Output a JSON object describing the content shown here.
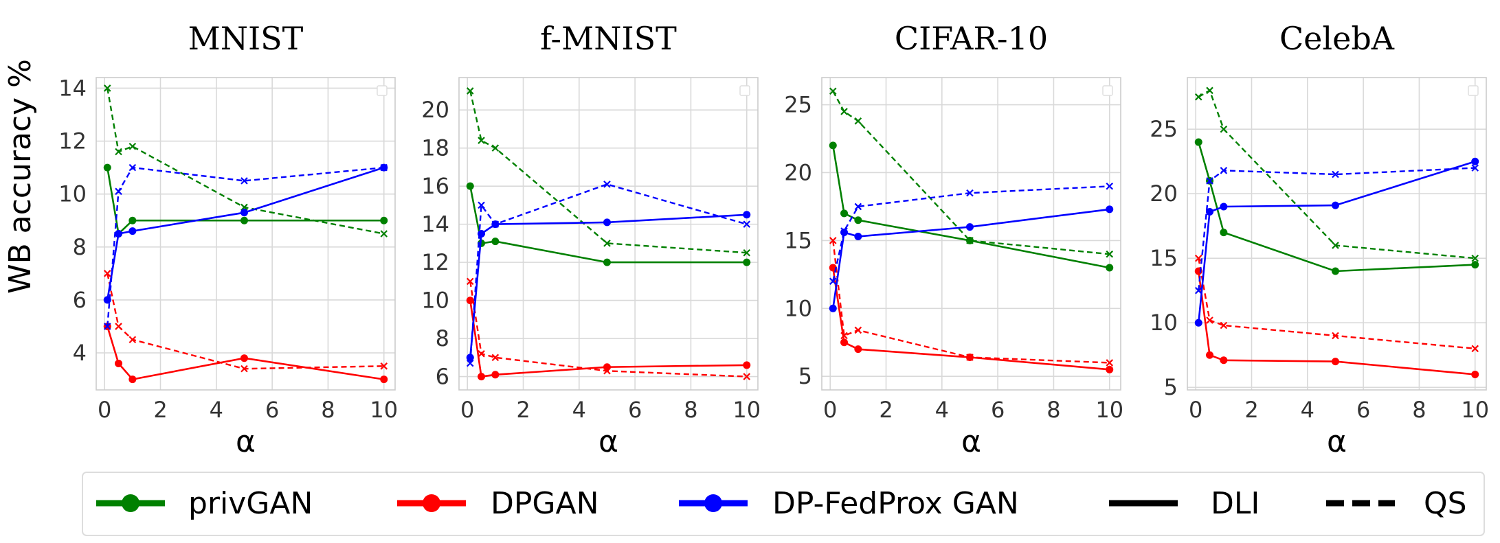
{
  "figure": {
    "ylabel": "WB accuracy %",
    "colors": {
      "privGAN": "#008000",
      "DPGAN": "#ff0000",
      "DP-FedProx GAN": "#0000ff"
    },
    "legend": {
      "items": [
        "privGAN",
        "DPGAN",
        "DP-FedProx GAN",
        "DLI",
        "QS"
      ]
    }
  },
  "chart_data": [
    {
      "type": "line",
      "title": "MNIST",
      "xlabel": "α",
      "ylabel": "WB accuracy %",
      "xlim": [
        -0.3,
        10.4
      ],
      "ylim": [
        2.6,
        14.4
      ],
      "xticks": [
        0,
        2,
        4,
        6,
        8,
        10
      ],
      "yticks": [
        4,
        6,
        8,
        10,
        12,
        14
      ],
      "x": [
        0.1,
        0.5,
        1,
        5,
        10
      ],
      "series": [
        {
          "name": "privGAN",
          "method": "DLI",
          "values": [
            11,
            8.5,
            9,
            9,
            9
          ]
        },
        {
          "name": "privGAN",
          "method": "QS",
          "values": [
            14,
            11.6,
            11.8,
            9.5,
            8.5
          ]
        },
        {
          "name": "DPGAN",
          "method": "DLI",
          "values": [
            5,
            3.6,
            3,
            3.8,
            3
          ]
        },
        {
          "name": "DPGAN",
          "method": "QS",
          "values": [
            7,
            5,
            4.5,
            3.4,
            3.5
          ]
        },
        {
          "name": "DP-FedProx GAN",
          "method": "DLI",
          "values": [
            6,
            8.5,
            8.6,
            9.3,
            11
          ]
        },
        {
          "name": "DP-FedProx GAN",
          "method": "QS",
          "values": [
            5,
            10.1,
            11,
            10.5,
            11
          ]
        }
      ]
    },
    {
      "type": "line",
      "title": "f-MNIST",
      "xlabel": "α",
      "ylabel": "",
      "xlim": [
        -0.3,
        10.4
      ],
      "ylim": [
        5.3,
        21.7
      ],
      "xticks": [
        0,
        2,
        4,
        6,
        8,
        10
      ],
      "yticks": [
        6,
        8,
        10,
        12,
        14,
        16,
        18,
        20
      ],
      "x": [
        0.1,
        0.5,
        1,
        5,
        10
      ],
      "series": [
        {
          "name": "privGAN",
          "method": "DLI",
          "values": [
            16,
            13,
            13.1,
            12,
            12
          ]
        },
        {
          "name": "privGAN",
          "method": "QS",
          "values": [
            21,
            18.4,
            18,
            13,
            12.5
          ]
        },
        {
          "name": "DPGAN",
          "method": "DLI",
          "values": [
            10,
            6,
            6.1,
            6.5,
            6.6
          ]
        },
        {
          "name": "DPGAN",
          "method": "QS",
          "values": [
            11,
            7.2,
            7,
            6.3,
            6
          ]
        },
        {
          "name": "DP-FedProx GAN",
          "method": "DLI",
          "values": [
            7,
            13.5,
            14,
            14.1,
            14.5
          ]
        },
        {
          "name": "DP-FedProx GAN",
          "method": "QS",
          "values": [
            6.7,
            15,
            14,
            16.1,
            14
          ]
        }
      ]
    },
    {
      "type": "line",
      "title": "CIFAR-10",
      "xlabel": "α",
      "ylabel": "",
      "xlim": [
        -0.3,
        10.4
      ],
      "ylim": [
        4,
        27
      ],
      "xticks": [
        0,
        2,
        4,
        6,
        8,
        10
      ],
      "yticks": [
        5,
        10,
        15,
        20,
        25
      ],
      "x": [
        0.1,
        0.5,
        1,
        5,
        10
      ],
      "series": [
        {
          "name": "privGAN",
          "method": "DLI",
          "values": [
            22,
            17,
            16.5,
            15,
            13
          ]
        },
        {
          "name": "privGAN",
          "method": "QS",
          "values": [
            26,
            24.5,
            23.8,
            15,
            14
          ]
        },
        {
          "name": "DPGAN",
          "method": "DLI",
          "values": [
            13,
            7.5,
            7,
            6.4,
            5.5
          ]
        },
        {
          "name": "DPGAN",
          "method": "QS",
          "values": [
            15,
            8,
            8.4,
            6.4,
            6
          ]
        },
        {
          "name": "DP-FedProx GAN",
          "method": "DLI",
          "values": [
            10,
            15.6,
            15.3,
            16,
            17.3
          ]
        },
        {
          "name": "DP-FedProx GAN",
          "method": "QS",
          "values": [
            12,
            15.7,
            17.5,
            18.5,
            19
          ]
        }
      ]
    },
    {
      "type": "line",
      "title": "CelebA",
      "xlabel": "α",
      "ylabel": "",
      "xlim": [
        -0.3,
        10.4
      ],
      "ylim": [
        4.8,
        29
      ],
      "xticks": [
        0,
        2,
        4,
        6,
        8,
        10
      ],
      "yticks": [
        5,
        10,
        15,
        20,
        25
      ],
      "x": [
        0.1,
        0.5,
        1,
        5,
        10
      ],
      "series": [
        {
          "name": "privGAN",
          "method": "DLI",
          "values": [
            24,
            21,
            17,
            14,
            14.5
          ]
        },
        {
          "name": "privGAN",
          "method": "QS",
          "values": [
            27.5,
            28,
            25,
            16,
            15
          ]
        },
        {
          "name": "DPGAN",
          "method": "DLI",
          "values": [
            14,
            7.5,
            7.1,
            7,
            6
          ]
        },
        {
          "name": "DPGAN",
          "method": "QS",
          "values": [
            15,
            10.2,
            9.8,
            9,
            8
          ]
        },
        {
          "name": "DP-FedProx GAN",
          "method": "DLI",
          "values": [
            10,
            18.6,
            19,
            19.1,
            22.5
          ]
        },
        {
          "name": "DP-FedProx GAN",
          "method": "QS",
          "values": [
            12.5,
            21,
            21.8,
            21.5,
            22
          ]
        }
      ]
    }
  ]
}
